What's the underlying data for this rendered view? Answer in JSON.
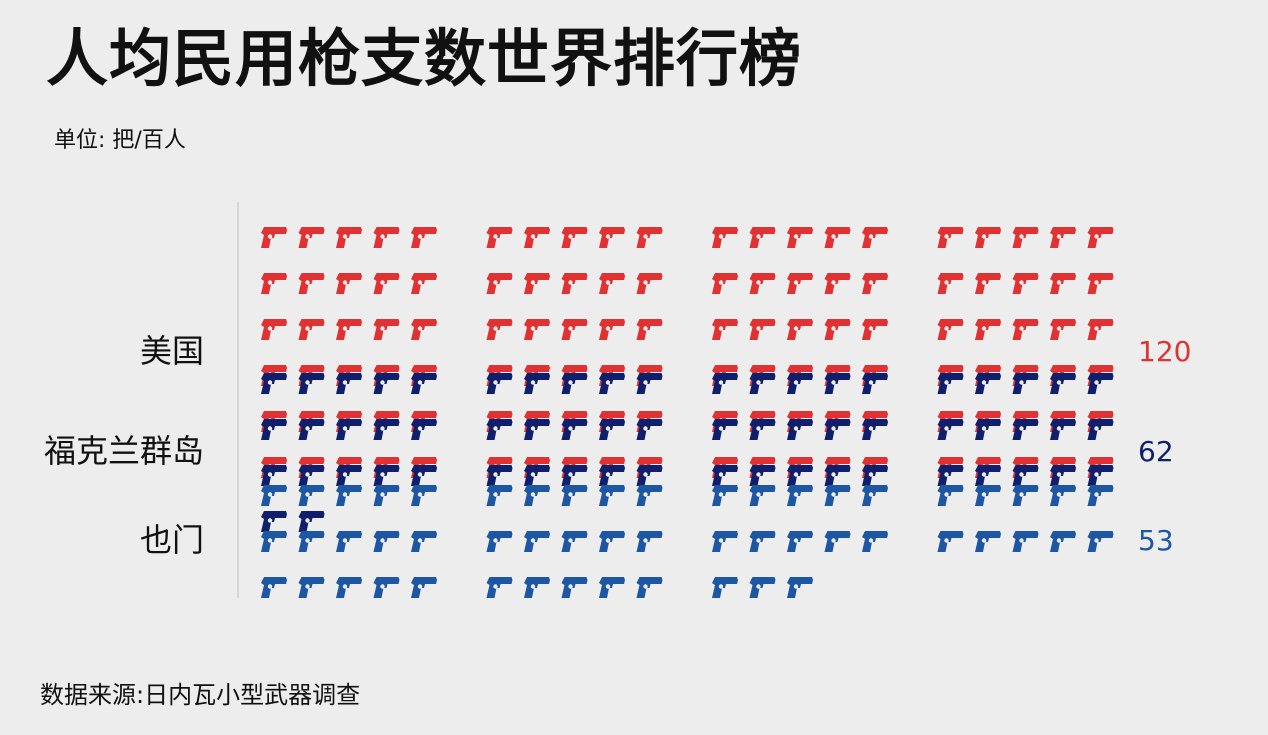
{
  "title": "人均民用枪支数世界排行榜",
  "subtitle": "单位: 把/百人",
  "source": "数据来源:日内瓦小型武器调查",
  "icon": "pistol-icon",
  "chart_data": {
    "type": "pictograph",
    "unit": "把/百人",
    "categories": [
      "美国",
      "福克兰群岛",
      "也门"
    ],
    "values": [
      120,
      62,
      53
    ],
    "value_labels": [
      "120",
      "62",
      "53"
    ],
    "colors": [
      "#e03232",
      "#0f1f6b",
      "#1d57a3"
    ]
  }
}
